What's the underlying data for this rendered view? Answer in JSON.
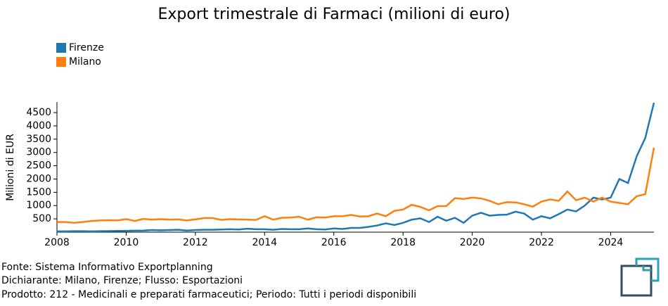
{
  "chart_data": {
    "type": "line",
    "title": "Export trimestrale di Farmaci (milioni di euro)",
    "y_label": "Milioni di EUR",
    "x": [
      2008,
      2008.25,
      2008.5,
      2008.75,
      2009,
      2009.25,
      2009.5,
      2009.75,
      2010,
      2010.25,
      2010.5,
      2010.75,
      2011,
      2011.25,
      2011.5,
      2011.75,
      2012,
      2012.25,
      2012.5,
      2012.75,
      2013,
      2013.25,
      2013.5,
      2013.75,
      2014,
      2014.25,
      2014.5,
      2014.75,
      2015,
      2015.25,
      2015.5,
      2015.75,
      2016,
      2016.25,
      2016.5,
      2016.75,
      2017,
      2017.25,
      2017.5,
      2017.75,
      2018,
      2018.25,
      2018.5,
      2018.75,
      2019,
      2019.25,
      2019.5,
      2019.75,
      2020,
      2020.25,
      2020.5,
      2020.75,
      2021,
      2021.25,
      2021.5,
      2021.75,
      2022,
      2022.25,
      2022.5,
      2022.75,
      2023,
      2023.25,
      2023.5,
      2023.75,
      2024,
      2024.25,
      2024.5,
      2024.75,
      2025,
      2025.25
    ],
    "series": [
      {
        "name": "Firenze",
        "color": "#1f77b4",
        "values": [
          30,
          30,
          35,
          35,
          30,
          35,
          40,
          45,
          50,
          55,
          60,
          80,
          70,
          80,
          90,
          60,
          80,
          90,
          90,
          100,
          110,
          100,
          130,
          110,
          110,
          90,
          120,
          110,
          110,
          140,
          110,
          100,
          140,
          120,
          160,
          160,
          200,
          250,
          330,
          270,
          350,
          470,
          520,
          380,
          580,
          430,
          540,
          350,
          620,
          730,
          620,
          650,
          660,
          770,
          700,
          470,
          600,
          520,
          680,
          850,
          780,
          1000,
          1300,
          1230,
          1300,
          2000,
          1850,
          2850,
          3550,
          4870
        ]
      },
      {
        "name": "Milano",
        "color": "#ff7f0e",
        "values": [
          380,
          380,
          350,
          380,
          420,
          440,
          450,
          440,
          490,
          420,
          500,
          470,
          490,
          470,
          480,
          440,
          480,
          530,
          530,
          460,
          490,
          480,
          470,
          460,
          600,
          470,
          540,
          550,
          580,
          470,
          560,
          550,
          600,
          600,
          650,
          590,
          600,
          700,
          600,
          800,
          850,
          1030,
          950,
          820,
          980,
          980,
          1280,
          1250,
          1300,
          1270,
          1180,
          1050,
          1130,
          1120,
          1050,
          960,
          1150,
          1230,
          1180,
          1530,
          1200,
          1300,
          1150,
          1300,
          1150,
          1100,
          1050,
          1350,
          1430,
          3180
        ]
      }
    ],
    "xlim": [
      2008,
      2025.25
    ],
    "xticks": [
      2008,
      2010,
      2012,
      2014,
      2016,
      2018,
      2020,
      2022,
      2024
    ],
    "ylim": [
      0,
      4900
    ],
    "yticks": [
      500,
      1000,
      1500,
      2000,
      2500,
      3000,
      3500,
      4000,
      4500
    ],
    "legend": "top-left"
  },
  "footer": [
    "Fonte: Sistema Informativo Exportplanning",
    "Dichiarante: Milano, Firenze; Flusso: Esportazioni",
    "Prodotto: 212 - Medicinali e preparati farmaceutici; Periodo: Tutti i periodi disponibili"
  ]
}
